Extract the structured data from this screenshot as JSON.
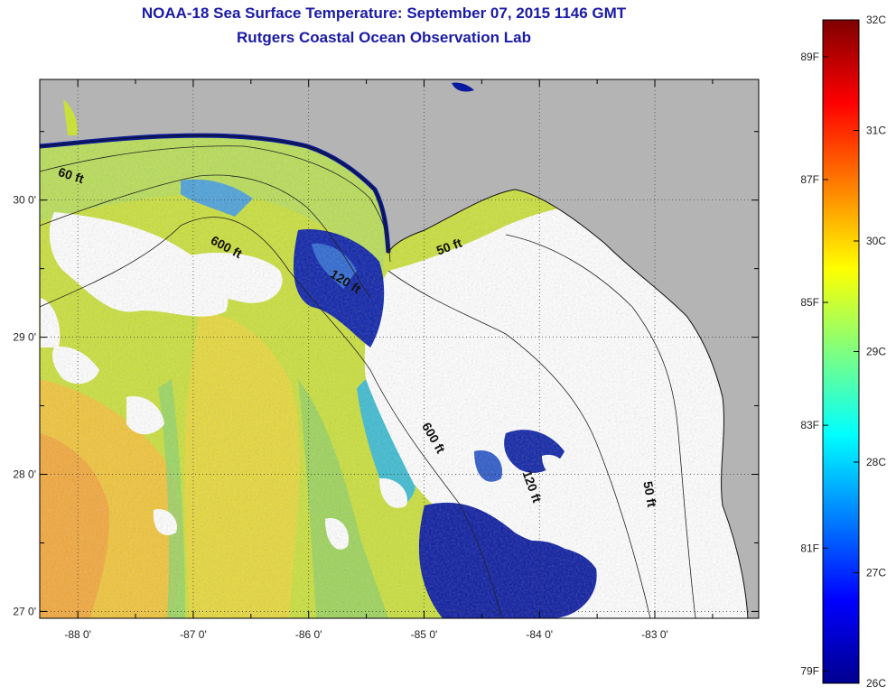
{
  "header": {
    "title": "NOAA-18 Sea Surface Temperature:  September 07, 2015 1146 GMT",
    "subtitle": "Rutgers Coastal Ocean Observation Lab"
  },
  "map": {
    "lon_ticks": [
      "-88 0'",
      "-87 0'",
      "-86 0'",
      "-85 0'",
      "-84 0'",
      "-83 0'"
    ],
    "lat_ticks": [
      "30 0'",
      "29 0'",
      "28 0'",
      "27 0'"
    ],
    "lon_range": [
      -88.33,
      -82.1
    ],
    "lat_range": [
      26.95,
      30.88
    ],
    "colors": {
      "land": "#b4b4b4",
      "cloud": "#ffffff",
      "warm": "#e8d830",
      "hot": "#f2a52a",
      "mid": "#a9d85a",
      "cool": "#3fb8d8",
      "cold": "#0a1aa0"
    },
    "contour_labels": [
      {
        "text": "60 ft",
        "lon": -88.07,
        "lat": 30.15,
        "angle": 18
      },
      {
        "text": "600 ft",
        "lon": -86.73,
        "lat": 29.63,
        "angle": 28
      },
      {
        "text": "120 ft",
        "lon": -85.7,
        "lat": 29.38,
        "angle": 32
      },
      {
        "text": "50 ft",
        "lon": -84.77,
        "lat": 29.63,
        "angle": -20
      },
      {
        "text": "600 ft",
        "lon": -84.95,
        "lat": 28.25,
        "angle": 60
      },
      {
        "text": "120 ft",
        "lon": -84.1,
        "lat": 27.9,
        "angle": 70
      },
      {
        "text": "50 ft",
        "lon": -83.08,
        "lat": 27.85,
        "angle": 80
      }
    ]
  },
  "colorbar": {
    "celsius": [
      "32C",
      "31C",
      "30C",
      "29C",
      "28C",
      "27C",
      "26C"
    ],
    "fahrenheit": [
      "89F",
      "87F",
      "85F",
      "83F",
      "81F",
      "79F"
    ],
    "c_range": [
      26,
      32
    ],
    "f_values": [
      89,
      87,
      85,
      83,
      81,
      79
    ]
  }
}
